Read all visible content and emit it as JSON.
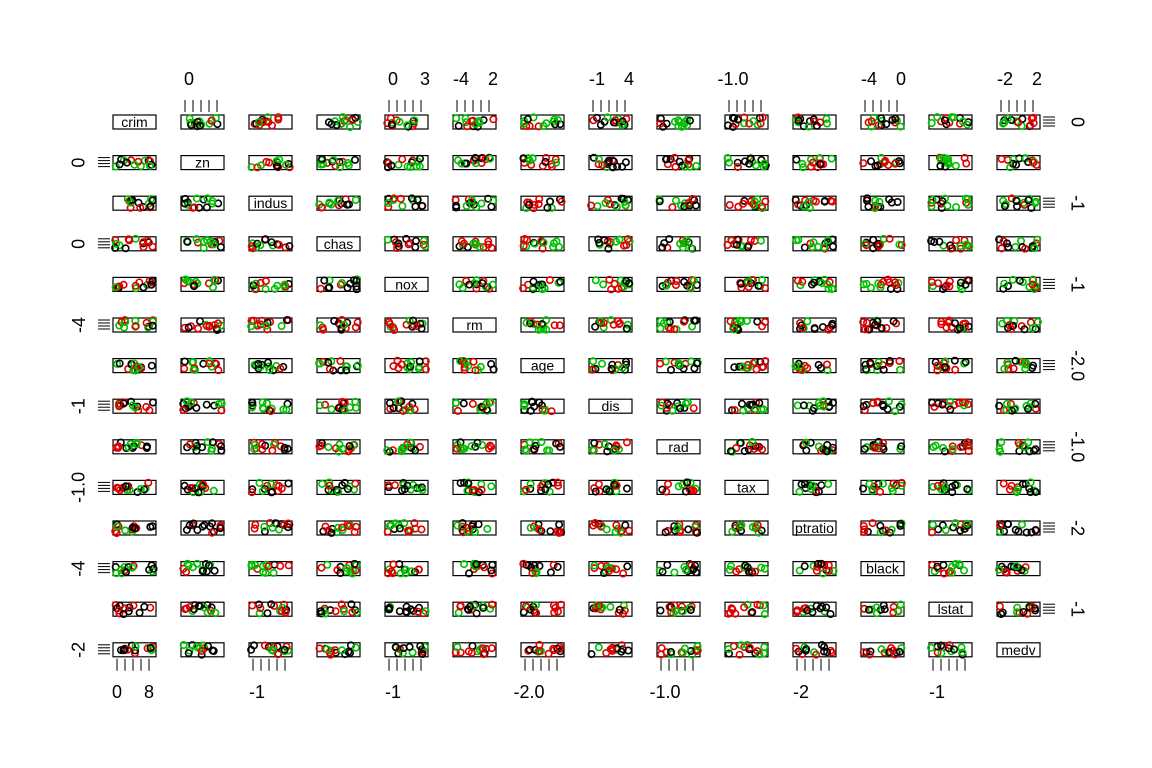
{
  "chart_data": {
    "type": "scatter",
    "subtype": "scatterplot-matrix",
    "variables": [
      "crim",
      "zn",
      "indus",
      "chas",
      "nox",
      "rm",
      "age",
      "dis",
      "rad",
      "tax",
      "ptratio",
      "black",
      "lstat",
      "medv"
    ],
    "point_colors": [
      "#000000",
      "#DF0000",
      "#00C000"
    ],
    "top_axis_ticks": [
      {
        "column": "zn",
        "labels": [
          "0"
        ]
      },
      {
        "column": "nox",
        "labels": [
          "0",
          "3"
        ]
      },
      {
        "column": "rm",
        "labels": [
          "-4",
          "2"
        ]
      },
      {
        "column": "dis",
        "labels": [
          "-1",
          "4"
        ]
      },
      {
        "column": "tax",
        "labels": [
          "-1.0"
        ]
      },
      {
        "column": "black",
        "labels": [
          "-4",
          "0"
        ]
      },
      {
        "column": "medv",
        "labels": [
          "-2",
          "2"
        ]
      }
    ],
    "bottom_axis_ticks": [
      {
        "column": "crim",
        "labels": [
          "0",
          "8"
        ]
      },
      {
        "column": "indus",
        "labels": [
          "-1"
        ]
      },
      {
        "column": "nox",
        "labels": [
          "-1"
        ]
      },
      {
        "column": "age",
        "labels": [
          "-2.0"
        ]
      },
      {
        "column": "rad",
        "labels": [
          "-1.0"
        ]
      },
      {
        "column": "ptratio",
        "labels": [
          "-2"
        ]
      },
      {
        "column": "lstat",
        "labels": [
          "-1"
        ]
      }
    ],
    "left_axis_ticks": [
      {
        "row": "zn",
        "labels": [
          "0"
        ]
      },
      {
        "row": "chas",
        "labels": [
          "0"
        ]
      },
      {
        "row": "rm",
        "labels": [
          "-4"
        ]
      },
      {
        "row": "dis",
        "labels": [
          "-1"
        ]
      },
      {
        "row": "tax",
        "labels": [
          "-1.0"
        ]
      },
      {
        "row": "black",
        "labels": [
          "-4"
        ]
      },
      {
        "row": "medv",
        "labels": [
          "-2"
        ]
      }
    ],
    "right_axis_ticks": [
      {
        "row": "crim",
        "labels": [
          "0"
        ]
      },
      {
        "row": "indus",
        "labels": [
          "-1"
        ]
      },
      {
        "row": "nox",
        "labels": [
          "-1"
        ]
      },
      {
        "row": "age",
        "labels": [
          "-2.0"
        ]
      },
      {
        "row": "rad",
        "labels": [
          "-1.0"
        ]
      },
      {
        "row": "ptratio",
        "labels": [
          "-2"
        ]
      },
      {
        "row": "lstat",
        "labels": [
          "-1"
        ]
      }
    ]
  }
}
